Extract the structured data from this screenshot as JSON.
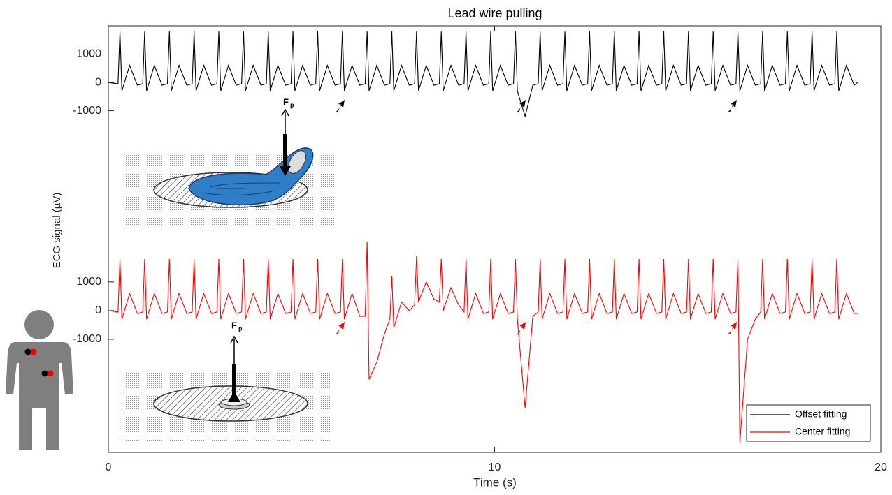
{
  "chart_data": [
    {
      "type": "line",
      "title": "Lead wire pulling",
      "ylabel": "ECG signal (µV)",
      "annotation_main": "F",
      "annotation_sub": "p",
      "xlim": [
        0,
        20
      ],
      "ylim": [
        -5230,
        2000
      ],
      "yticks": [
        -1000,
        0,
        1000
      ],
      "x": [
        0,
        0.25,
        0.3,
        0.35,
        0.55,
        0.75,
        0.89,
        0.94,
        0.99,
        1.19,
        1.39,
        1.53,
        1.58,
        1.63,
        1.83,
        2.03,
        2.17,
        2.22,
        2.27,
        2.47,
        2.67,
        2.81,
        2.86,
        2.91,
        3.11,
        3.31,
        3.45,
        3.5,
        3.55,
        3.75,
        3.95,
        4.09,
        4.14,
        4.19,
        4.39,
        4.59,
        4.73,
        4.78,
        4.83,
        5.03,
        5.23,
        5.37,
        5.42,
        5.47,
        5.67,
        5.87,
        6.01,
        6.06,
        6.11,
        6.31,
        6.51,
        6.65,
        6.7,
        6.75,
        6.95,
        7.15,
        7.29,
        7.34,
        7.39,
        7.59,
        7.79,
        7.93,
        7.98,
        8.03,
        8.23,
        8.43,
        8.57,
        8.62,
        8.67,
        8.87,
        9.07,
        9.21,
        9.26,
        9.31,
        9.51,
        9.71,
        9.85,
        9.9,
        9.95,
        10.15,
        10.35,
        10.49,
        10.54,
        10.59,
        10.79,
        10.99,
        11.13,
        11.18,
        11.23,
        11.43,
        11.63,
        11.77,
        11.82,
        11.87,
        12.07,
        12.27,
        12.41,
        12.46,
        12.51,
        12.71,
        12.91,
        13.05,
        13.1,
        13.15,
        13.35,
        13.55,
        13.69,
        13.74,
        13.79,
        13.99,
        14.19,
        14.33,
        14.38,
        14.43,
        14.63,
        14.83,
        14.97,
        15.02,
        15.07,
        15.27,
        15.47,
        15.61,
        15.66,
        15.71,
        15.91,
        16.11,
        16.25,
        16.3,
        16.35,
        16.55,
        16.75,
        16.89,
        16.94,
        16.99,
        17.19,
        17.39,
        17.53,
        17.58,
        17.63,
        17.83,
        18.03,
        18.17,
        18.22,
        18.27,
        18.47,
        18.67,
        18.81,
        18.86,
        18.91,
        19.11,
        19.31,
        19.4
      ],
      "series": [
        {
          "name": "Offset fitting",
          "color": "#000000",
          "values": [
            0,
            -50,
            1800,
            -300,
            600,
            -100,
            -50,
            1800,
            -300,
            600,
            -100,
            -50,
            1800,
            -300,
            600,
            -100,
            -50,
            1800,
            -300,
            600,
            -100,
            -50,
            1800,
            -300,
            600,
            -100,
            -50,
            1800,
            -300,
            600,
            -100,
            -50,
            1800,
            -300,
            600,
            -100,
            -50,
            1800,
            -300,
            600,
            -100,
            -50,
            1800,
            -300,
            600,
            -100,
            -50,
            1800,
            -300,
            600,
            -100,
            -50,
            1800,
            -300,
            600,
            -100,
            -50,
            1800,
            -300,
            600,
            -100,
            -50,
            1800,
            -300,
            600,
            -100,
            -50,
            1800,
            -300,
            600,
            -100,
            -50,
            1800,
            -300,
            600,
            -100,
            -50,
            1800,
            -300,
            600,
            -100,
            -50,
            1800,
            -300,
            -1200,
            -100,
            -50,
            1800,
            -300,
            600,
            -100,
            -50,
            1800,
            -300,
            600,
            -100,
            -50,
            1800,
            -300,
            600,
            -100,
            -50,
            1800,
            -300,
            600,
            -100,
            -50,
            1800,
            -300,
            600,
            -100,
            -50,
            1800,
            -300,
            600,
            -100,
            -50,
            1800,
            -300,
            600,
            -100,
            -50,
            1800,
            -300,
            600,
            -100,
            -50,
            1800,
            -300,
            600,
            -100,
            -50,
            1800,
            -300,
            600,
            -100,
            -50,
            1800,
            -300,
            600,
            -100,
            -50,
            1800,
            -300,
            600,
            -100,
            -50,
            1800,
            -300,
            600,
            -100,
            0
          ]
        }
      ]
    },
    {
      "type": "line",
      "xlabel": "Time (s)",
      "annotation_main": "F",
      "annotation_sub": "p",
      "xlim": [
        0,
        20
      ],
      "xticks": [
        0,
        10,
        20
      ],
      "ylim": [
        -4950,
        2800
      ],
      "yticks": [
        -1000,
        0,
        1000
      ],
      "legend": "lower right",
      "x": [
        0,
        0.25,
        0.3,
        0.35,
        0.55,
        0.75,
        0.89,
        0.94,
        0.99,
        1.19,
        1.39,
        1.53,
        1.58,
        1.63,
        1.83,
        2.03,
        2.17,
        2.22,
        2.27,
        2.47,
        2.67,
        2.81,
        2.86,
        2.91,
        3.11,
        3.31,
        3.45,
        3.5,
        3.55,
        3.75,
        3.95,
        4.09,
        4.14,
        4.19,
        4.39,
        4.59,
        4.73,
        4.78,
        4.83,
        5.03,
        5.23,
        5.37,
        5.42,
        5.47,
        5.67,
        5.87,
        6.01,
        6.06,
        6.11,
        6.31,
        6.51,
        6.65,
        6.7,
        6.75,
        6.95,
        7.15,
        7.29,
        7.34,
        7.39,
        7.59,
        7.79,
        7.93,
        7.98,
        8.03,
        8.23,
        8.43,
        8.57,
        8.62,
        8.67,
        8.87,
        9.07,
        9.21,
        9.26,
        9.31,
        9.51,
        9.71,
        9.85,
        9.9,
        9.95,
        10.15,
        10.35,
        10.49,
        10.54,
        10.59,
        10.79,
        10.99,
        11.13,
        11.18,
        11.23,
        11.43,
        11.63,
        11.77,
        11.82,
        11.87,
        12.07,
        12.27,
        12.41,
        12.46,
        12.51,
        12.71,
        12.91,
        13.05,
        13.1,
        13.15,
        13.35,
        13.55,
        13.69,
        13.74,
        13.79,
        13.99,
        14.19,
        14.33,
        14.38,
        14.43,
        14.63,
        14.83,
        14.97,
        15.02,
        15.07,
        15.27,
        15.47,
        15.61,
        15.66,
        15.71,
        15.91,
        16.11,
        16.25,
        16.3,
        16.35,
        16.55,
        16.75,
        16.89,
        16.94,
        16.99,
        17.19,
        17.39,
        17.53,
        17.58,
        17.63,
        17.83,
        18.03,
        18.17,
        18.22,
        18.27,
        18.47,
        18.67,
        18.81,
        18.86,
        18.91,
        19.11,
        19.31,
        19.4
      ],
      "series": [
        {
          "name": "Center fitting",
          "color": "#ff0000",
          "values": [
            0,
            -50,
            1800,
            -300,
            600,
            -100,
            -50,
            1800,
            -300,
            600,
            -100,
            -50,
            1800,
            -300,
            600,
            -100,
            -50,
            1800,
            -300,
            600,
            -100,
            -50,
            1800,
            -300,
            600,
            -100,
            -50,
            1800,
            -300,
            600,
            -100,
            -50,
            1800,
            -300,
            600,
            -100,
            -50,
            1800,
            -300,
            600,
            -100,
            -50,
            1800,
            -300,
            600,
            -100,
            -50,
            1800,
            -300,
            600,
            -200,
            -200,
            2400,
            -2400,
            -1800,
            -800,
            -300,
            1200,
            -600,
            300,
            0,
            200,
            1900,
            300,
            1000,
            400,
            300,
            1800,
            0,
            800,
            200,
            -50,
            1800,
            -300,
            600,
            -100,
            -50,
            1800,
            -300,
            600,
            -100,
            -50,
            1800,
            -300,
            -3400,
            -200,
            -50,
            1800,
            -300,
            600,
            -100,
            -50,
            1800,
            -300,
            600,
            -100,
            -50,
            1800,
            -300,
            600,
            -100,
            -50,
            1800,
            -300,
            600,
            -100,
            -50,
            1800,
            -300,
            600,
            -100,
            -50,
            1800,
            -300,
            600,
            -100,
            -50,
            1800,
            -300,
            600,
            -100,
            -50,
            1800,
            -300,
            600,
            -100,
            -50,
            1800,
            -4600,
            -1000,
            -300,
            -50,
            1800,
            -300,
            600,
            -100,
            -50,
            1800,
            -300,
            600,
            -100,
            -50,
            1800,
            -300,
            600,
            -100,
            -50,
            1800,
            -300,
            600,
            -100,
            -100
          ]
        }
      ]
    }
  ]
}
